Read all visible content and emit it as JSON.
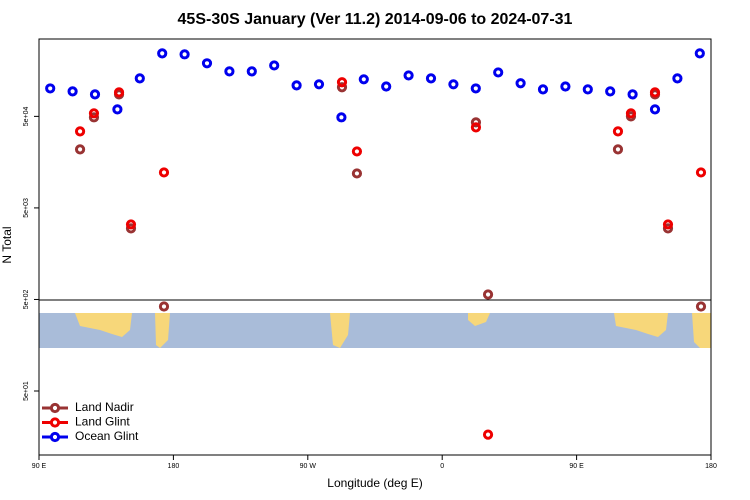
{
  "chart_data": {
    "type": "scatter",
    "title": "45S-30S January (Ver 11.2)   2014-09-06 to 2024-07-31",
    "xlabel": "Longitude (deg E)",
    "ylabel": "N Total",
    "log_y": true,
    "xlim": [
      90,
      540
    ],
    "xticks": [
      {
        "value": 90,
        "label": "90 E"
      },
      180,
      {
        "value": 270,
        "label": "90 W"
      },
      {
        "value": 360,
        "label": "0"
      },
      {
        "value": 450,
        "label": "90 E"
      },
      {
        "value": 540,
        "label": "180"
      }
    ],
    "ylim": [
      10,
      350000
    ],
    "yticks": [
      {
        "value": 50,
        "label": "5e+01"
      },
      {
        "value": 500,
        "label": "5e+02"
      },
      {
        "value": 5000,
        "label": "5e+03"
      },
      {
        "value": 50000,
        "label": "5e+04"
      }
    ],
    "legend": "bottom-left",
    "series": [
      {
        "name": "Land Nadir",
        "color": "#993333",
        "x": [
          117.5,
          126.8,
          143.6,
          151.6,
          173.7,
          292.9,
          302.9,
          382.6,
          390.7,
          477.7,
          486.4,
          502.5,
          511.2,
          533.3
        ],
        "values": [
          21800,
          48800,
          86900,
          2990,
          419,
          104000,
          11900,
          43000,
          567,
          21800,
          50000,
          86900,
          2990,
          419
        ]
      },
      {
        "name": "Land Glint",
        "color": "#ee0000",
        "x": [
          117.5,
          126.8,
          143.6,
          151.6,
          173.7,
          292.9,
          302.9,
          382.6,
          390.7,
          477.7,
          486.4,
          502.5,
          511.2,
          533.3
        ],
        "values": [
          34300,
          54000,
          91500,
          3300,
          12200,
          118000,
          20700,
          37900,
          16.7,
          34300,
          54000,
          91500,
          3300,
          12200
        ]
      },
      {
        "name": "Ocean Glint",
        "color": "#0000ee",
        "x": [
          97.5,
          112.5,
          127.5,
          142.5,
          157.5,
          172.5,
          187.5,
          202.5,
          217.5,
          232.5,
          247.5,
          262.5,
          277.5,
          292.5,
          307.5,
          322.5,
          337.5,
          352.5,
          367.5,
          382.5,
          397.5,
          412.5,
          427.5,
          442.5,
          457.5,
          472.5,
          487.5,
          502.5,
          517.5,
          532.5
        ],
        "values": [
          101000,
          93800,
          86900,
          59600,
          130000,
          244000,
          238000,
          190000,
          155000,
          155000,
          180000,
          109000,
          112000,
          48800,
          127000,
          106000,
          140000,
          130000,
          112000,
          101000,
          151000,
          115000,
          98600,
          106000,
          98600,
          93800,
          86900,
          59600,
          130000,
          244000
        ]
      }
    ]
  }
}
